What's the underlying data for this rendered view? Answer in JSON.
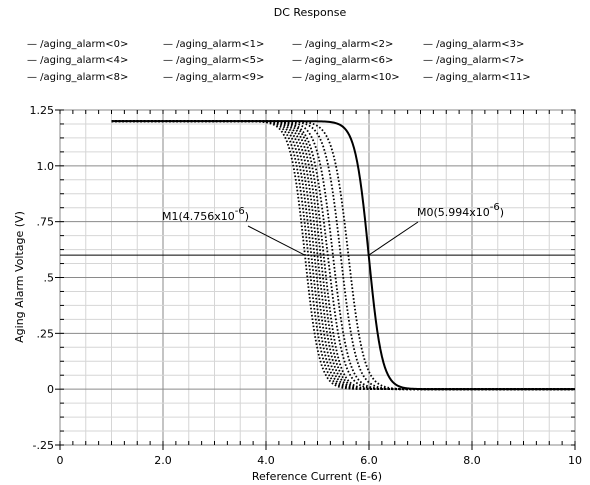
{
  "chart_data": {
    "type": "line",
    "title": "DC Response",
    "xlabel": "Reference Current (E-6)",
    "ylabel": "Aging Alarm Voltage (V)",
    "xlim": [
      0,
      10
    ],
    "ylim": [
      -0.25,
      1.25
    ],
    "grid": true,
    "legend_position": "top",
    "x_tick_labels": [
      "0",
      "2.0",
      "4.0",
      "6.0",
      "8.0",
      "10"
    ],
    "y_tick_labels": [
      "1.25",
      "1.0",
      ".75",
      ".5",
      ".25",
      "0",
      "-.25"
    ],
    "legend": [
      "— /aging_alarm<0>",
      "— /aging_alarm<1>",
      "— /aging_alarm<2>",
      "— /aging_alarm<3>",
      "— /aging_alarm<4>",
      "— /aging_alarm<5>",
      "— /aging_alarm<6>",
      "— /aging_alarm<7>",
      "— /aging_alarm<8>",
      "— /aging_alarm<9>",
      "— /aging_alarm<10>",
      "— /aging_alarm<11>"
    ],
    "series": [
      {
        "name": "/aging_alarm<0>",
        "style": "solid",
        "x_start": 1.0,
        "x_end": 10.0,
        "v_high": 1.2,
        "v_low": 0.0,
        "x_mid": 5.994,
        "width": 0.13
      },
      {
        "name": "/aging_alarm<1>",
        "style": "dotted",
        "x_start": 1.0,
        "x_end": 10.0,
        "v_high": 1.2,
        "v_low": 0.0,
        "x_mid": 4.756,
        "width": 0.14
      },
      {
        "name": "/aging_alarm<2>",
        "style": "dotted",
        "x_start": 1.0,
        "x_end": 10.0,
        "v_high": 1.2,
        "v_low": 0.0,
        "x_mid": 4.82,
        "width": 0.14
      },
      {
        "name": "/aging_alarm<3>",
        "style": "dotted",
        "x_start": 1.0,
        "x_end": 10.0,
        "v_high": 1.2,
        "v_low": 0.0,
        "x_mid": 4.88,
        "width": 0.14
      },
      {
        "name": "/aging_alarm<4>",
        "style": "dotted",
        "x_start": 1.0,
        "x_end": 10.0,
        "v_high": 1.2,
        "v_low": 0.0,
        "x_mid": 4.94,
        "width": 0.14
      },
      {
        "name": "/aging_alarm<5>",
        "style": "dotted",
        "x_start": 1.0,
        "x_end": 10.0,
        "v_high": 1.2,
        "v_low": 0.0,
        "x_mid": 5.0,
        "width": 0.14
      },
      {
        "name": "/aging_alarm<6>",
        "style": "dotted",
        "x_start": 1.0,
        "x_end": 10.0,
        "v_high": 1.2,
        "v_low": 0.0,
        "x_mid": 5.06,
        "width": 0.14
      },
      {
        "name": "/aging_alarm<7>",
        "style": "dotted",
        "x_start": 1.0,
        "x_end": 10.0,
        "v_high": 1.2,
        "v_low": 0.0,
        "x_mid": 5.12,
        "width": 0.14
      },
      {
        "name": "/aging_alarm<8>",
        "style": "dotted",
        "x_start": 1.0,
        "x_end": 10.0,
        "v_high": 1.2,
        "v_low": 0.0,
        "x_mid": 5.2,
        "width": 0.15
      },
      {
        "name": "/aging_alarm<9>",
        "style": "dotted",
        "x_start": 1.0,
        "x_end": 10.0,
        "v_high": 1.2,
        "v_low": 0.0,
        "x_mid": 5.3,
        "width": 0.15
      },
      {
        "name": "/aging_alarm<10>",
        "style": "dotted",
        "x_start": 1.0,
        "x_end": 10.0,
        "v_high": 1.2,
        "v_low": 0.0,
        "x_mid": 5.45,
        "width": 0.15
      },
      {
        "name": "/aging_alarm<11>",
        "style": "dotted",
        "x_start": 1.0,
        "x_end": 10.0,
        "v_high": 1.2,
        "v_low": 0.0,
        "x_mid": 5.6,
        "width": 0.15
      }
    ],
    "reference_line": {
      "y": 0.6
    },
    "markers": [
      {
        "label": "M1(4.756x10",
        "exp": "-6",
        "close": ")",
        "x": 4.756,
        "y": 0.6
      },
      {
        "label": "M0(5.994x10",
        "exp": "-6",
        "close": ")",
        "x": 5.994,
        "y": 0.6
      }
    ]
  }
}
